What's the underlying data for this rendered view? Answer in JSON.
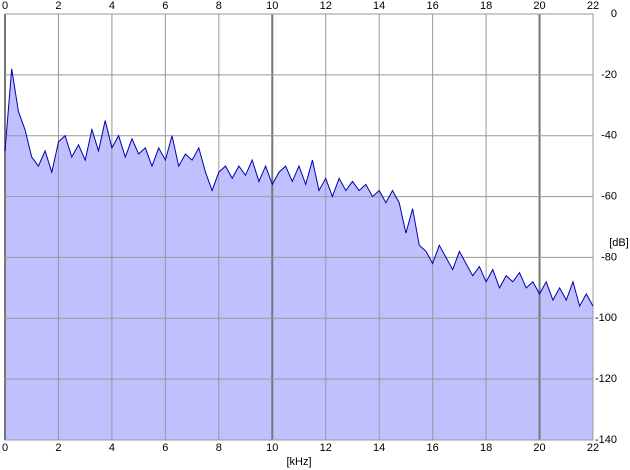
{
  "chart_data": {
    "type": "area",
    "x_label": "[kHz]",
    "y_label": "[dB]",
    "x": [
      0,
      0.25,
      0.5,
      0.75,
      1,
      1.25,
      1.5,
      1.75,
      2,
      2.25,
      2.5,
      2.75,
      3,
      3.25,
      3.5,
      3.75,
      4,
      4.25,
      4.5,
      4.75,
      5,
      5.25,
      5.5,
      5.75,
      6,
      6.25,
      6.5,
      6.75,
      7,
      7.25,
      7.5,
      7.75,
      8,
      8.25,
      8.5,
      8.75,
      9,
      9.25,
      9.5,
      9.75,
      10,
      10.25,
      10.5,
      10.75,
      11,
      11.25,
      11.5,
      11.75,
      12,
      12.25,
      12.5,
      12.75,
      13,
      13.25,
      13.5,
      13.75,
      14,
      14.25,
      14.5,
      14.75,
      15,
      15.25,
      15.5,
      15.75,
      16,
      16.25,
      16.5,
      16.75,
      17,
      17.25,
      17.5,
      17.75,
      18,
      18.25,
      18.5,
      18.75,
      19,
      19.25,
      19.5,
      19.75,
      20,
      20.25,
      20.5,
      20.75,
      21,
      21.25,
      21.5,
      21.75,
      22
    ],
    "series": [
      {
        "color": "#0000b0",
        "fill": "#c0c0ff",
        "values": [
          -45,
          -18,
          -32,
          -38,
          -47,
          -50,
          -45,
          -52,
          -42,
          -40,
          -47,
          -43,
          -48,
          -38,
          -45,
          -35,
          -44,
          -40,
          -47,
          -41,
          -46,
          -44,
          -50,
          -44,
          -48,
          -40,
          -50,
          -46,
          -48,
          -44,
          -52,
          -58,
          -52,
          -50,
          -54,
          -50,
          -53,
          -48,
          -55,
          -50,
          -56,
          -52,
          -50,
          -55,
          -50,
          -56,
          -48,
          -58,
          -54,
          -60,
          -54,
          -58,
          -55,
          -58,
          -56,
          -60,
          -58,
          -62,
          -58,
          -62,
          -72,
          -64,
          -76,
          -78,
          -82,
          -76,
          -80,
          -84,
          -78,
          -82,
          -86,
          -83,
          -88,
          -84,
          -90,
          -86,
          -88,
          -85,
          -90,
          -88,
          -92,
          -88,
          -94,
          -90,
          -94,
          -88,
          -96,
          -92,
          -96
        ]
      }
    ],
    "xlim": [
      0,
      22
    ],
    "ylim": [
      -140,
      0
    ],
    "xticks": [
      0,
      2,
      4,
      6,
      8,
      10,
      12,
      14,
      16,
      18,
      20,
      22
    ],
    "yticks": [
      0,
      -20,
      -40,
      -60,
      -80,
      -100,
      -120,
      -140
    ],
    "grid": true
  }
}
